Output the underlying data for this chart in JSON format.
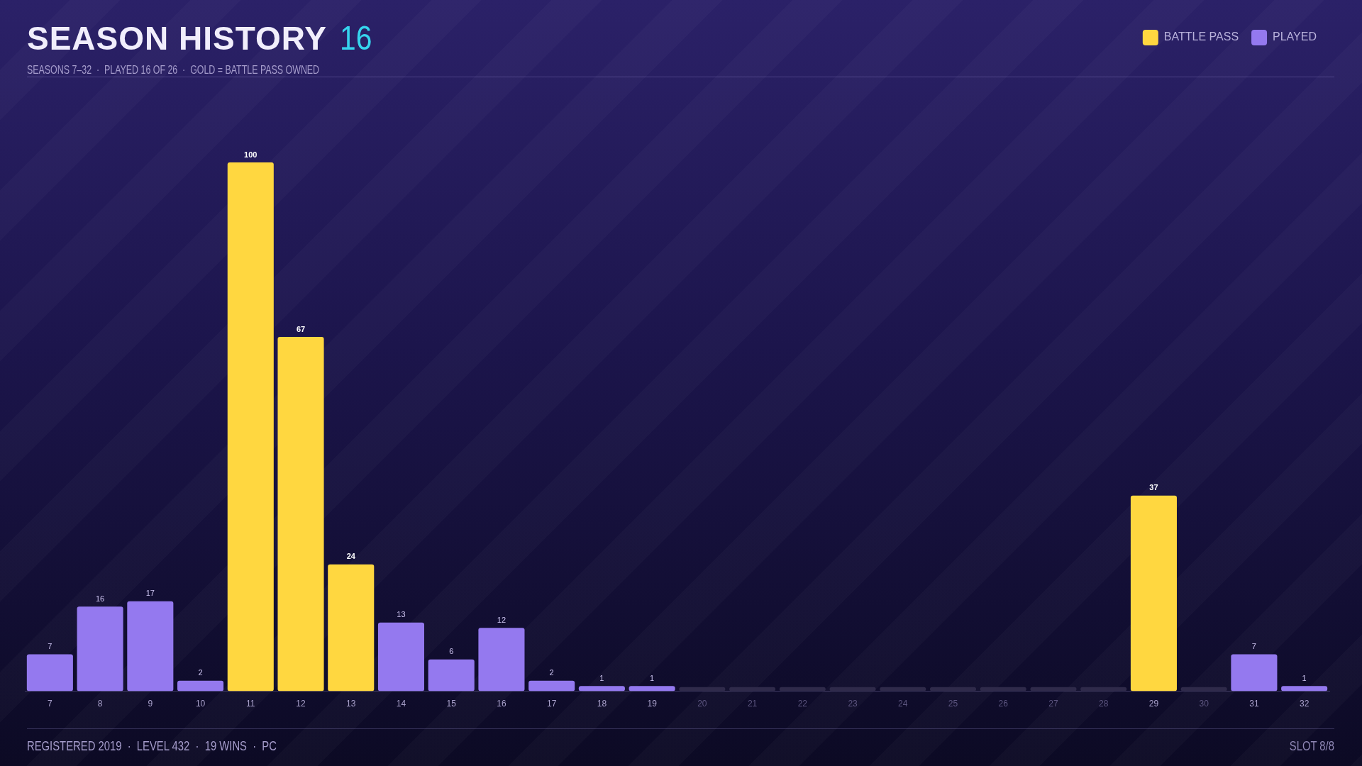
{
  "chart_data": {
    "type": "bar",
    "title": "SEASON HISTORY",
    "subtitle": "SEASONS 7–32  ·  PLAYED 16 OF 26  ·  GOLD = BATTLE PASS OWNED",
    "annotations": [
      "16",
      "REGISTERED 2019  ·  LEVEL 432  ·  19 WINS  ·  PC",
      "SLOT 8/8"
    ],
    "categories": [
      "7",
      "8",
      "9",
      "10",
      "11",
      "12",
      "13",
      "14",
      "15",
      "16",
      "17",
      "18",
      "19",
      "20",
      "21",
      "22",
      "23",
      "24",
      "25",
      "26",
      "27",
      "28",
      "29",
      "30",
      "31",
      "32"
    ],
    "series": [
      {
        "name": "BATTLE PASS",
        "color": "#ffd740",
        "values": [
          null,
          null,
          null,
          null,
          100,
          67,
          24,
          null,
          null,
          null,
          null,
          null,
          null,
          null,
          null,
          null,
          null,
          null,
          null,
          null,
          null,
          null,
          37,
          null,
          null,
          null
        ],
        "value_labels": [
          null,
          null,
          null,
          null,
          "100",
          "67",
          "24",
          null,
          null,
          null,
          null,
          null,
          null,
          null,
          null,
          null,
          null,
          null,
          null,
          null,
          null,
          null,
          "37",
          null,
          null,
          null
        ]
      },
      {
        "name": "PLAYED",
        "color": "#9479ef",
        "values": [
          7,
          16,
          17,
          2,
          null,
          null,
          null,
          13,
          6,
          12,
          2,
          1,
          1,
          null,
          null,
          null,
          null,
          null,
          null,
          null,
          null,
          null,
          null,
          null,
          7,
          1
        ],
        "value_labels": [
          "7",
          "16",
          "17",
          "2",
          null,
          null,
          null,
          "13",
          "6",
          "12",
          "2",
          "1",
          "1",
          null,
          null,
          null,
          null,
          null,
          null,
          null,
          null,
          null,
          null,
          null,
          "7",
          "1"
        ]
      },
      {
        "color": "#2f2a4a",
        "values": [
          null,
          null,
          null,
          null,
          null,
          null,
          null,
          null,
          null,
          null,
          null,
          null,
          null,
          0.8,
          0.8,
          0.8,
          0.8,
          0.8,
          0.8,
          0.8,
          0.8,
          0.8,
          null,
          0.8,
          null,
          null
        ]
      }
    ],
    "ylim": [
      0,
      100
    ],
    "tick_labels": "x",
    "legend": "top right"
  }
}
